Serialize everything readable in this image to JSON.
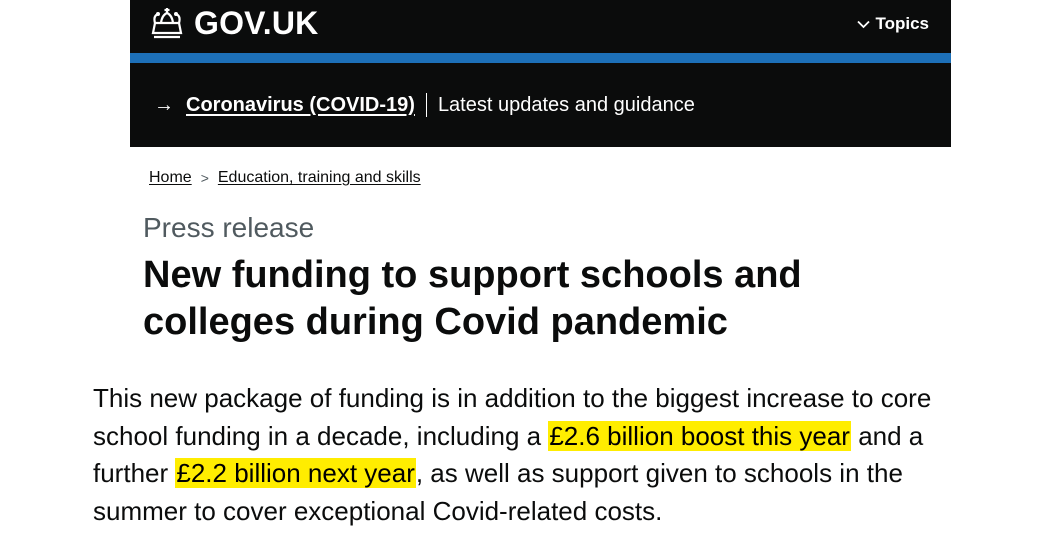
{
  "header": {
    "logo_text": "GOV.UK",
    "topics_label": "Topics",
    "colors": {
      "background": "#0b0c0c",
      "stripe": "#1d70b8"
    }
  },
  "covid_banner": {
    "link_text": "Coronavirus (COVID-19)",
    "sub_text": "Latest updates and guidance"
  },
  "breadcrumb": {
    "items": [
      "Home",
      "Education, training and skills"
    ]
  },
  "page": {
    "document_type": "Press release",
    "title": "New funding to support schools and colleges during Covid pandemic"
  },
  "summary": {
    "part1": "This new package of funding is in addition to the biggest increase to core school funding in a decade, including a ",
    "highlight1": "£2.6 billion boost this year",
    "part2": " and a further ",
    "highlight2": "£2.2 billion next year",
    "part3": ", as well as support given to schools in the summer to cover exceptional Covid-related costs.",
    "highlight_color": "#ffed00"
  }
}
